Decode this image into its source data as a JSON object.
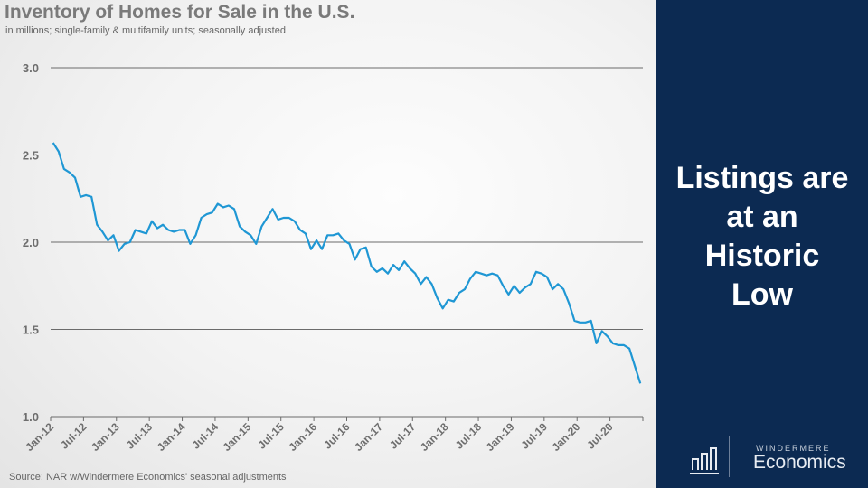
{
  "chart_data": {
    "type": "line",
    "title": "Inventory of Homes for Sale in the U.S.",
    "subtitle": "in millions; single-family & multifamily units; seasonally adjusted",
    "source": "Source: NAR w/Windermere Economics' seasonal adjustments",
    "xlabel": "",
    "ylabel": "",
    "ylim": [
      1.0,
      3.0
    ],
    "yticks": [
      "1.0",
      "1.5",
      "2.0",
      "2.5",
      "3.0"
    ],
    "ytick_values": [
      1.0,
      1.5,
      2.0,
      2.5,
      3.0
    ],
    "grid": true,
    "x_start": "Jan-12",
    "x_end": "Dec-20",
    "x_frequency": "monthly",
    "xtick_labels": [
      "Jan-12",
      "Jul-12",
      "Jan-13",
      "Jul-13",
      "Jan-14",
      "Jul-14",
      "Jan-15",
      "Jul-15",
      "Jan-16",
      "Jul-16",
      "Jan-17",
      "Jul-17",
      "Jan-18",
      "Jul-18",
      "Jan-19",
      "Jul-19",
      "Jan-20",
      "Jul-20"
    ],
    "series": [
      {
        "name": "Inventory (millions)",
        "color": "#1f97d4",
        "values": [
          2.57,
          2.52,
          2.42,
          2.4,
          2.37,
          2.26,
          2.27,
          2.26,
          2.1,
          2.06,
          2.01,
          2.04,
          1.95,
          1.99,
          2.0,
          2.07,
          2.06,
          2.05,
          2.12,
          2.08,
          2.1,
          2.07,
          2.06,
          2.07,
          2.07,
          1.99,
          2.04,
          2.14,
          2.16,
          2.17,
          2.22,
          2.2,
          2.21,
          2.19,
          2.09,
          2.06,
          2.04,
          1.99,
          2.09,
          2.14,
          2.19,
          2.13,
          2.14,
          2.14,
          2.12,
          2.07,
          2.05,
          1.96,
          2.01,
          1.96,
          2.04,
          2.04,
          2.05,
          2.01,
          1.99,
          1.9,
          1.96,
          1.97,
          1.86,
          1.83,
          1.85,
          1.82,
          1.87,
          1.84,
          1.89,
          1.85,
          1.82,
          1.76,
          1.8,
          1.76,
          1.68,
          1.62,
          1.67,
          1.66,
          1.71,
          1.73,
          1.79,
          1.83,
          1.82,
          1.81,
          1.82,
          1.81,
          1.75,
          1.7,
          1.75,
          1.71,
          1.74,
          1.76,
          1.83,
          1.82,
          1.8,
          1.73,
          1.76,
          1.73,
          1.65,
          1.55,
          1.54,
          1.54,
          1.55,
          1.42,
          1.49,
          1.46,
          1.42,
          1.41,
          1.41,
          1.39,
          1.29,
          1.19
        ]
      }
    ]
  },
  "panel": {
    "headline_lines": [
      "Listings are",
      "at an",
      "Historic",
      "Low"
    ],
    "background": "#0c2a52"
  },
  "logo": {
    "kicker": "WINDERMERE",
    "name": "Economics",
    "icon": "bar-chart-icon"
  }
}
